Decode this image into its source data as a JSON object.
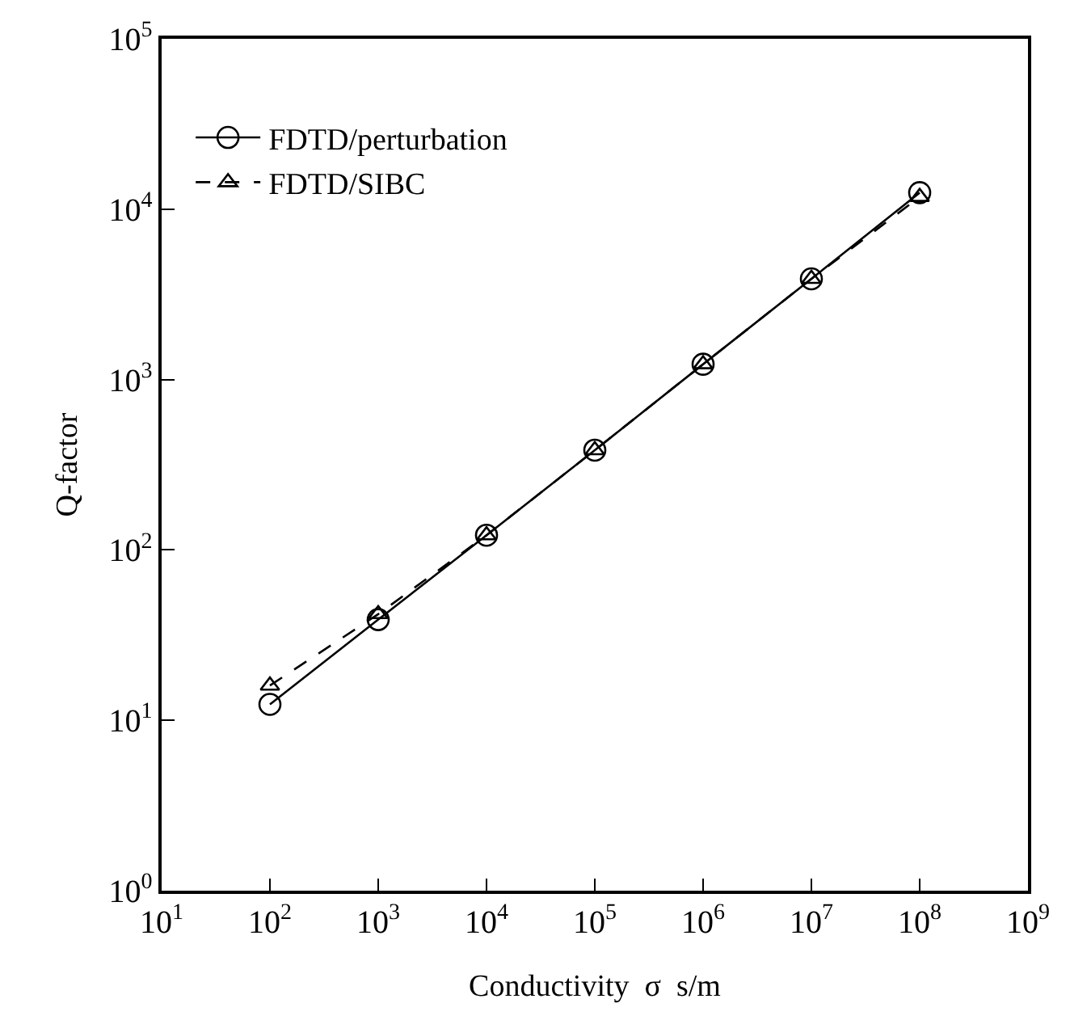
{
  "chart_data": {
    "type": "line",
    "xlabel": "Conductivity  σ  s/m",
    "ylabel": "Q-factor",
    "log": "xy",
    "legend": "top left",
    "x": [
      100,
      1000,
      10000,
      100000,
      1000000,
      10000000,
      100000000
    ],
    "series": [
      {
        "name": "FDTD/perturbation",
        "color": "#000000",
        "marker": "circle",
        "line_style": "solid",
        "values": [
          12.4,
          39,
          122,
          385,
          1230,
          3900,
          12500
        ]
      },
      {
        "name": "FDTD/SIBC",
        "color": "#000000",
        "marker": "triangle",
        "line_style": "dashed",
        "values": [
          16,
          42,
          122,
          385,
          1230,
          3900,
          11800
        ]
      }
    ],
    "xlim": [
      10,
      1000000000
    ],
    "xticks": [
      {
        "value": 10,
        "label": "10$^{1}$"
      },
      {
        "value": 100,
        "label": "10$^{2}$"
      },
      {
        "value": 1000,
        "label": "10$^{3}$"
      },
      {
        "value": 10000,
        "label": "10$^{4}$"
      },
      {
        "value": 100000,
        "label": "10$^{5}$"
      },
      {
        "value": 1000000,
        "label": "10$^{6}$"
      },
      {
        "value": 10000000,
        "label": "10$^{7}$"
      },
      {
        "value": 100000000,
        "label": "10$^{8}$"
      },
      {
        "value": 1000000000,
        "label": "10$^{9}$"
      }
    ],
    "ylim": [
      1,
      100000
    ],
    "yticks": [
      {
        "value": 1,
        "label": "10$^{0}$"
      },
      {
        "value": 10,
        "label": "10$^{1}$"
      },
      {
        "value": 100,
        "label": "10$^{2}$"
      },
      {
        "value": 1000,
        "label": "10$^{3}$"
      },
      {
        "value": 10000,
        "label": "10$^{4}$"
      },
      {
        "value": 100000,
        "label": "10$^{5}$"
      }
    ]
  }
}
